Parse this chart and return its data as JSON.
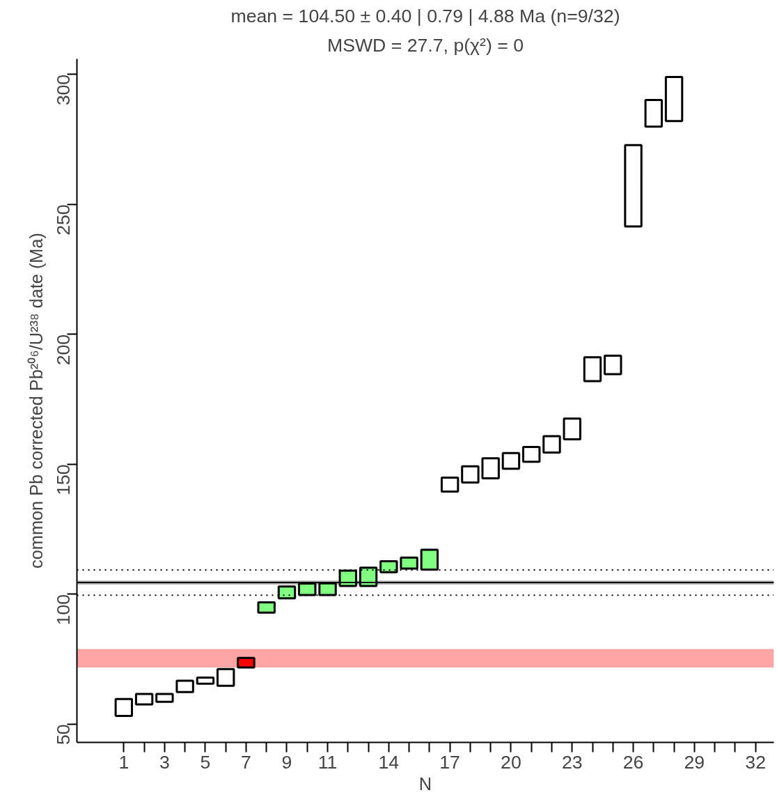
{
  "chart_data": {
    "type": "bar",
    "title": "mean = 104.50 ± 0.40 | 0.79 | 4.88 Ma (n=9/32)",
    "subtitle": "MSWD = 27.7, p(χ²) = 0",
    "xlabel": "N",
    "ylabel": "common Pb corrected Pb²⁰⁶/U²³⁸ date (Ma)",
    "x": [
      1,
      2,
      3,
      4,
      5,
      6,
      7,
      8,
      9,
      10,
      11,
      12,
      13,
      14,
      15,
      16,
      17,
      18,
      19,
      20,
      21,
      22,
      23,
      24,
      25,
      26,
      27,
      28
    ],
    "base": [
      53.2,
      57.6,
      58.6,
      62.4,
      65.6,
      64.8,
      71.8,
      92.9,
      98.4,
      99.7,
      99.7,
      103.2,
      103.2,
      108.5,
      109.9,
      109.5,
      139.5,
      143.0,
      144.6,
      148.3,
      151.0,
      154.5,
      159.6,
      182.0,
      184.7,
      241.5,
      279.9,
      282.1
    ],
    "values": [
      6.5,
      4.0,
      3.0,
      4.3,
      2.3,
      6.4,
      3.7,
      4.0,
      4.6,
      4.4,
      4.5,
      5.9,
      7.0,
      4.2,
      4.2,
      7.6,
      5.4,
      6.2,
      7.7,
      6.0,
      5.7,
      6.3,
      8.0,
      9.2,
      7.1,
      31.3,
      10.3,
      16.9
    ],
    "colors": [
      "#ffffff",
      "#ffffff",
      "#ffffff",
      "#ffffff",
      "#ffffff",
      "#ffffff",
      "#ff0000",
      "#80ff80",
      "#80ff80",
      "#80ff80",
      "#80ff80",
      "#80ff80",
      "#80ff80",
      "#80ff80",
      "#80ff80",
      "#80ff80",
      "#ffffff",
      "#ffffff",
      "#ffffff",
      "#ffffff",
      "#ffffff",
      "#ffffff",
      "#ffffff",
      "#ffffff",
      "#ffffff",
      "#ffffff",
      "#ffffff",
      "#ffffff"
    ],
    "xlim": [
      -1.3,
      32.9
    ],
    "ylim": [
      43,
      306
    ],
    "xticks": [
      1,
      {
        "value": 2,
        "label": null
      },
      3,
      {
        "value": 4,
        "label": null
      },
      5,
      {
        "value": 6,
        "label": null
      },
      7,
      {
        "value": 8,
        "label": null
      },
      9,
      {
        "value": 10,
        "label": null
      },
      11,
      {
        "value": 12,
        "label": null
      },
      {
        "value": 13,
        "label": null
      },
      14,
      {
        "value": 15,
        "label": null
      },
      {
        "value": 16,
        "label": null
      },
      17,
      {
        "value": 18,
        "label": null
      },
      {
        "value": 19,
        "label": null
      },
      20,
      {
        "value": 21,
        "label": null
      },
      {
        "value": 22,
        "label": null
      },
      23,
      {
        "value": 24,
        "label": null
      },
      {
        "value": 25,
        "label": null
      },
      26,
      {
        "value": 27,
        "label": null
      },
      {
        "value": 28,
        "label": null
      },
      29,
      {
        "value": 30,
        "label": null
      },
      {
        "value": 31,
        "label": null
      },
      32
    ],
    "yticks": [
      50,
      100,
      150,
      200,
      250,
      300
    ],
    "bands": [
      {
        "axis": "y",
        "from": 71.8,
        "to": 78.9,
        "color": "#ffa5a5"
      },
      {
        "axis": "y",
        "from": 103.71,
        "to": 105.29,
        "color": "#b4b4b4"
      }
    ],
    "ref_lines": [
      {
        "axis": "y",
        "value": 104.5,
        "color": "#000000",
        "line_style": "solid"
      },
      {
        "axis": "y",
        "value": 99.62,
        "color": "#000000",
        "line_style": "dotted"
      },
      {
        "axis": "y",
        "value": 109.38,
        "color": "#000000",
        "line_style": "dotted"
      }
    ],
    "grid": false
  }
}
